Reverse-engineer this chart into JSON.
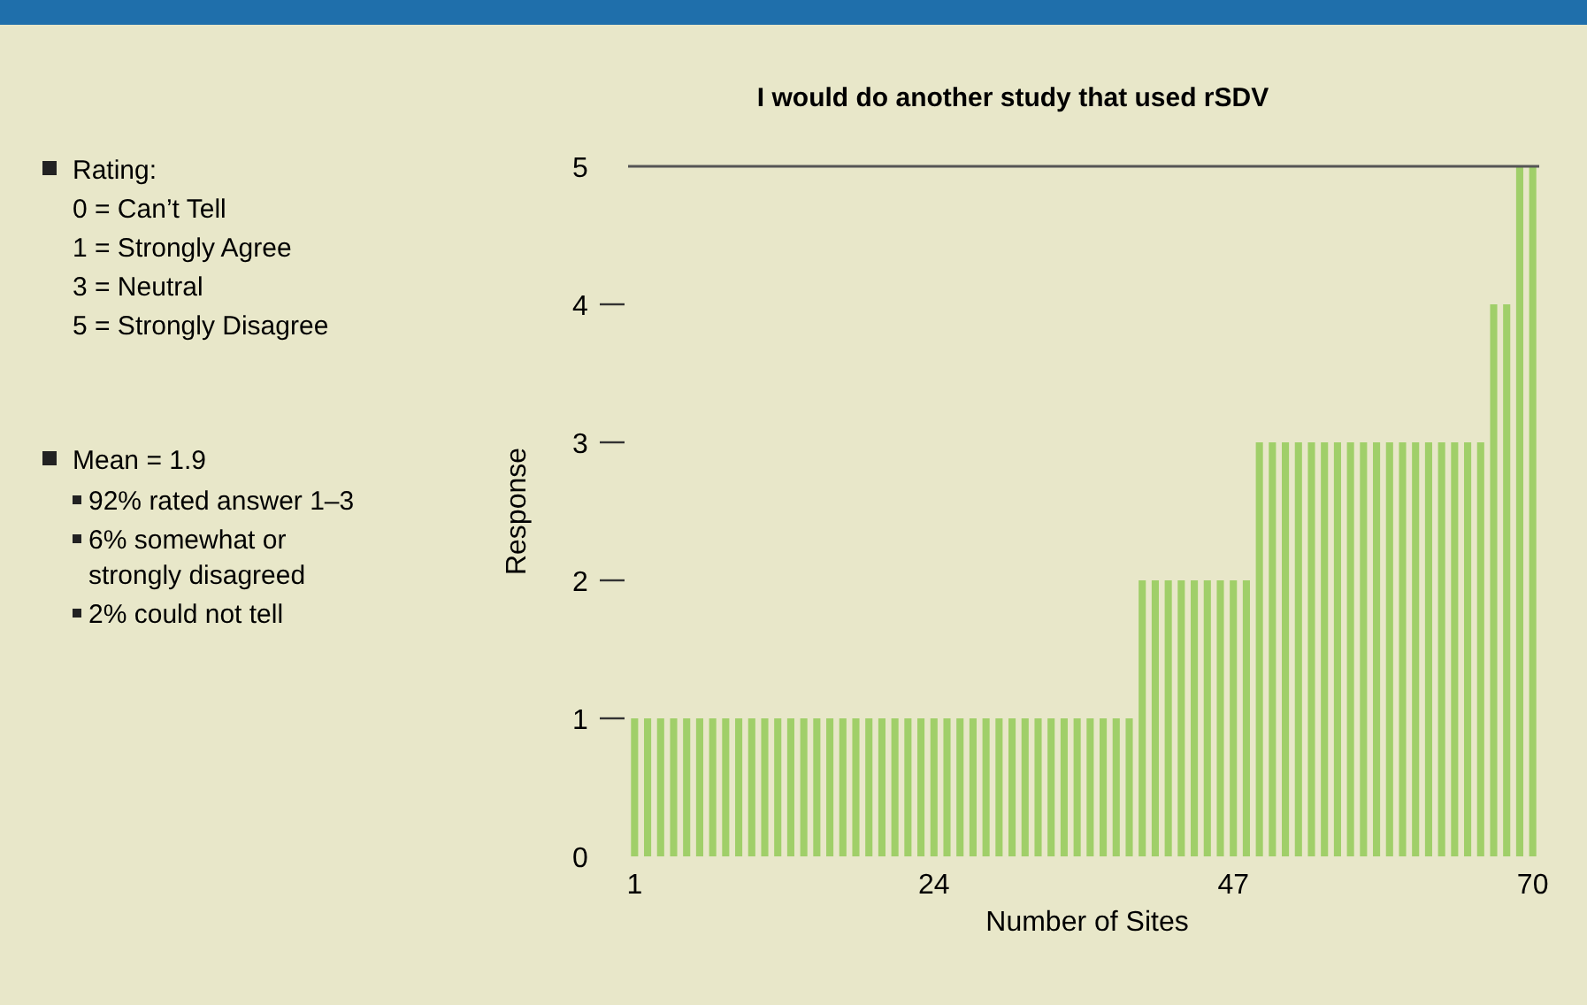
{
  "chart_data": {
    "type": "bar",
    "title": "I would do another study that used rSDV",
    "xlabel": "Number of Sites",
    "ylabel": "Response",
    "x": [
      1,
      2,
      3,
      4,
      5,
      6,
      7,
      8,
      9,
      10,
      11,
      12,
      13,
      14,
      15,
      16,
      17,
      18,
      19,
      20,
      21,
      22,
      23,
      24,
      25,
      26,
      27,
      28,
      29,
      30,
      31,
      32,
      33,
      34,
      35,
      36,
      37,
      38,
      39,
      40,
      41,
      42,
      43,
      44,
      45,
      46,
      47,
      48,
      49,
      50,
      51,
      52,
      53,
      54,
      55,
      56,
      57,
      58,
      59,
      60,
      61,
      62,
      63,
      64,
      65,
      66,
      67,
      68,
      69,
      70
    ],
    "values": [
      1,
      1,
      1,
      1,
      1,
      1,
      1,
      1,
      1,
      1,
      1,
      1,
      1,
      1,
      1,
      1,
      1,
      1,
      1,
      1,
      1,
      1,
      1,
      1,
      1,
      1,
      1,
      1,
      1,
      1,
      1,
      1,
      1,
      1,
      1,
      1,
      1,
      1,
      1,
      2,
      2,
      2,
      2,
      2,
      2,
      2,
      2,
      2,
      3,
      3,
      3,
      3,
      3,
      3,
      3,
      3,
      3,
      3,
      3,
      3,
      3,
      3,
      3,
      3,
      3,
      3,
      4,
      4,
      5,
      5
    ],
    "color": "#a0cf69",
    "xlim": [
      0.5,
      70.5
    ],
    "xticks": [
      1,
      24,
      47,
      70
    ],
    "ylim": [
      0,
      5
    ],
    "yticks": [
      0,
      1,
      2,
      3,
      4,
      5
    ],
    "ref_lines": [
      {
        "axis": "y",
        "value": 5,
        "color": "#555555"
      }
    ],
    "annotations": [
      "Rating:",
      "0 = Can’t Tell",
      "1 = Strongly Agree",
      "3 = Neutral",
      "5 = Strongly Disagree",
      "Mean = 1.9",
      "92% rated answer 1–3",
      "6% somewhat or",
      "strongly disagreed",
      "2% could not tell"
    ]
  }
}
